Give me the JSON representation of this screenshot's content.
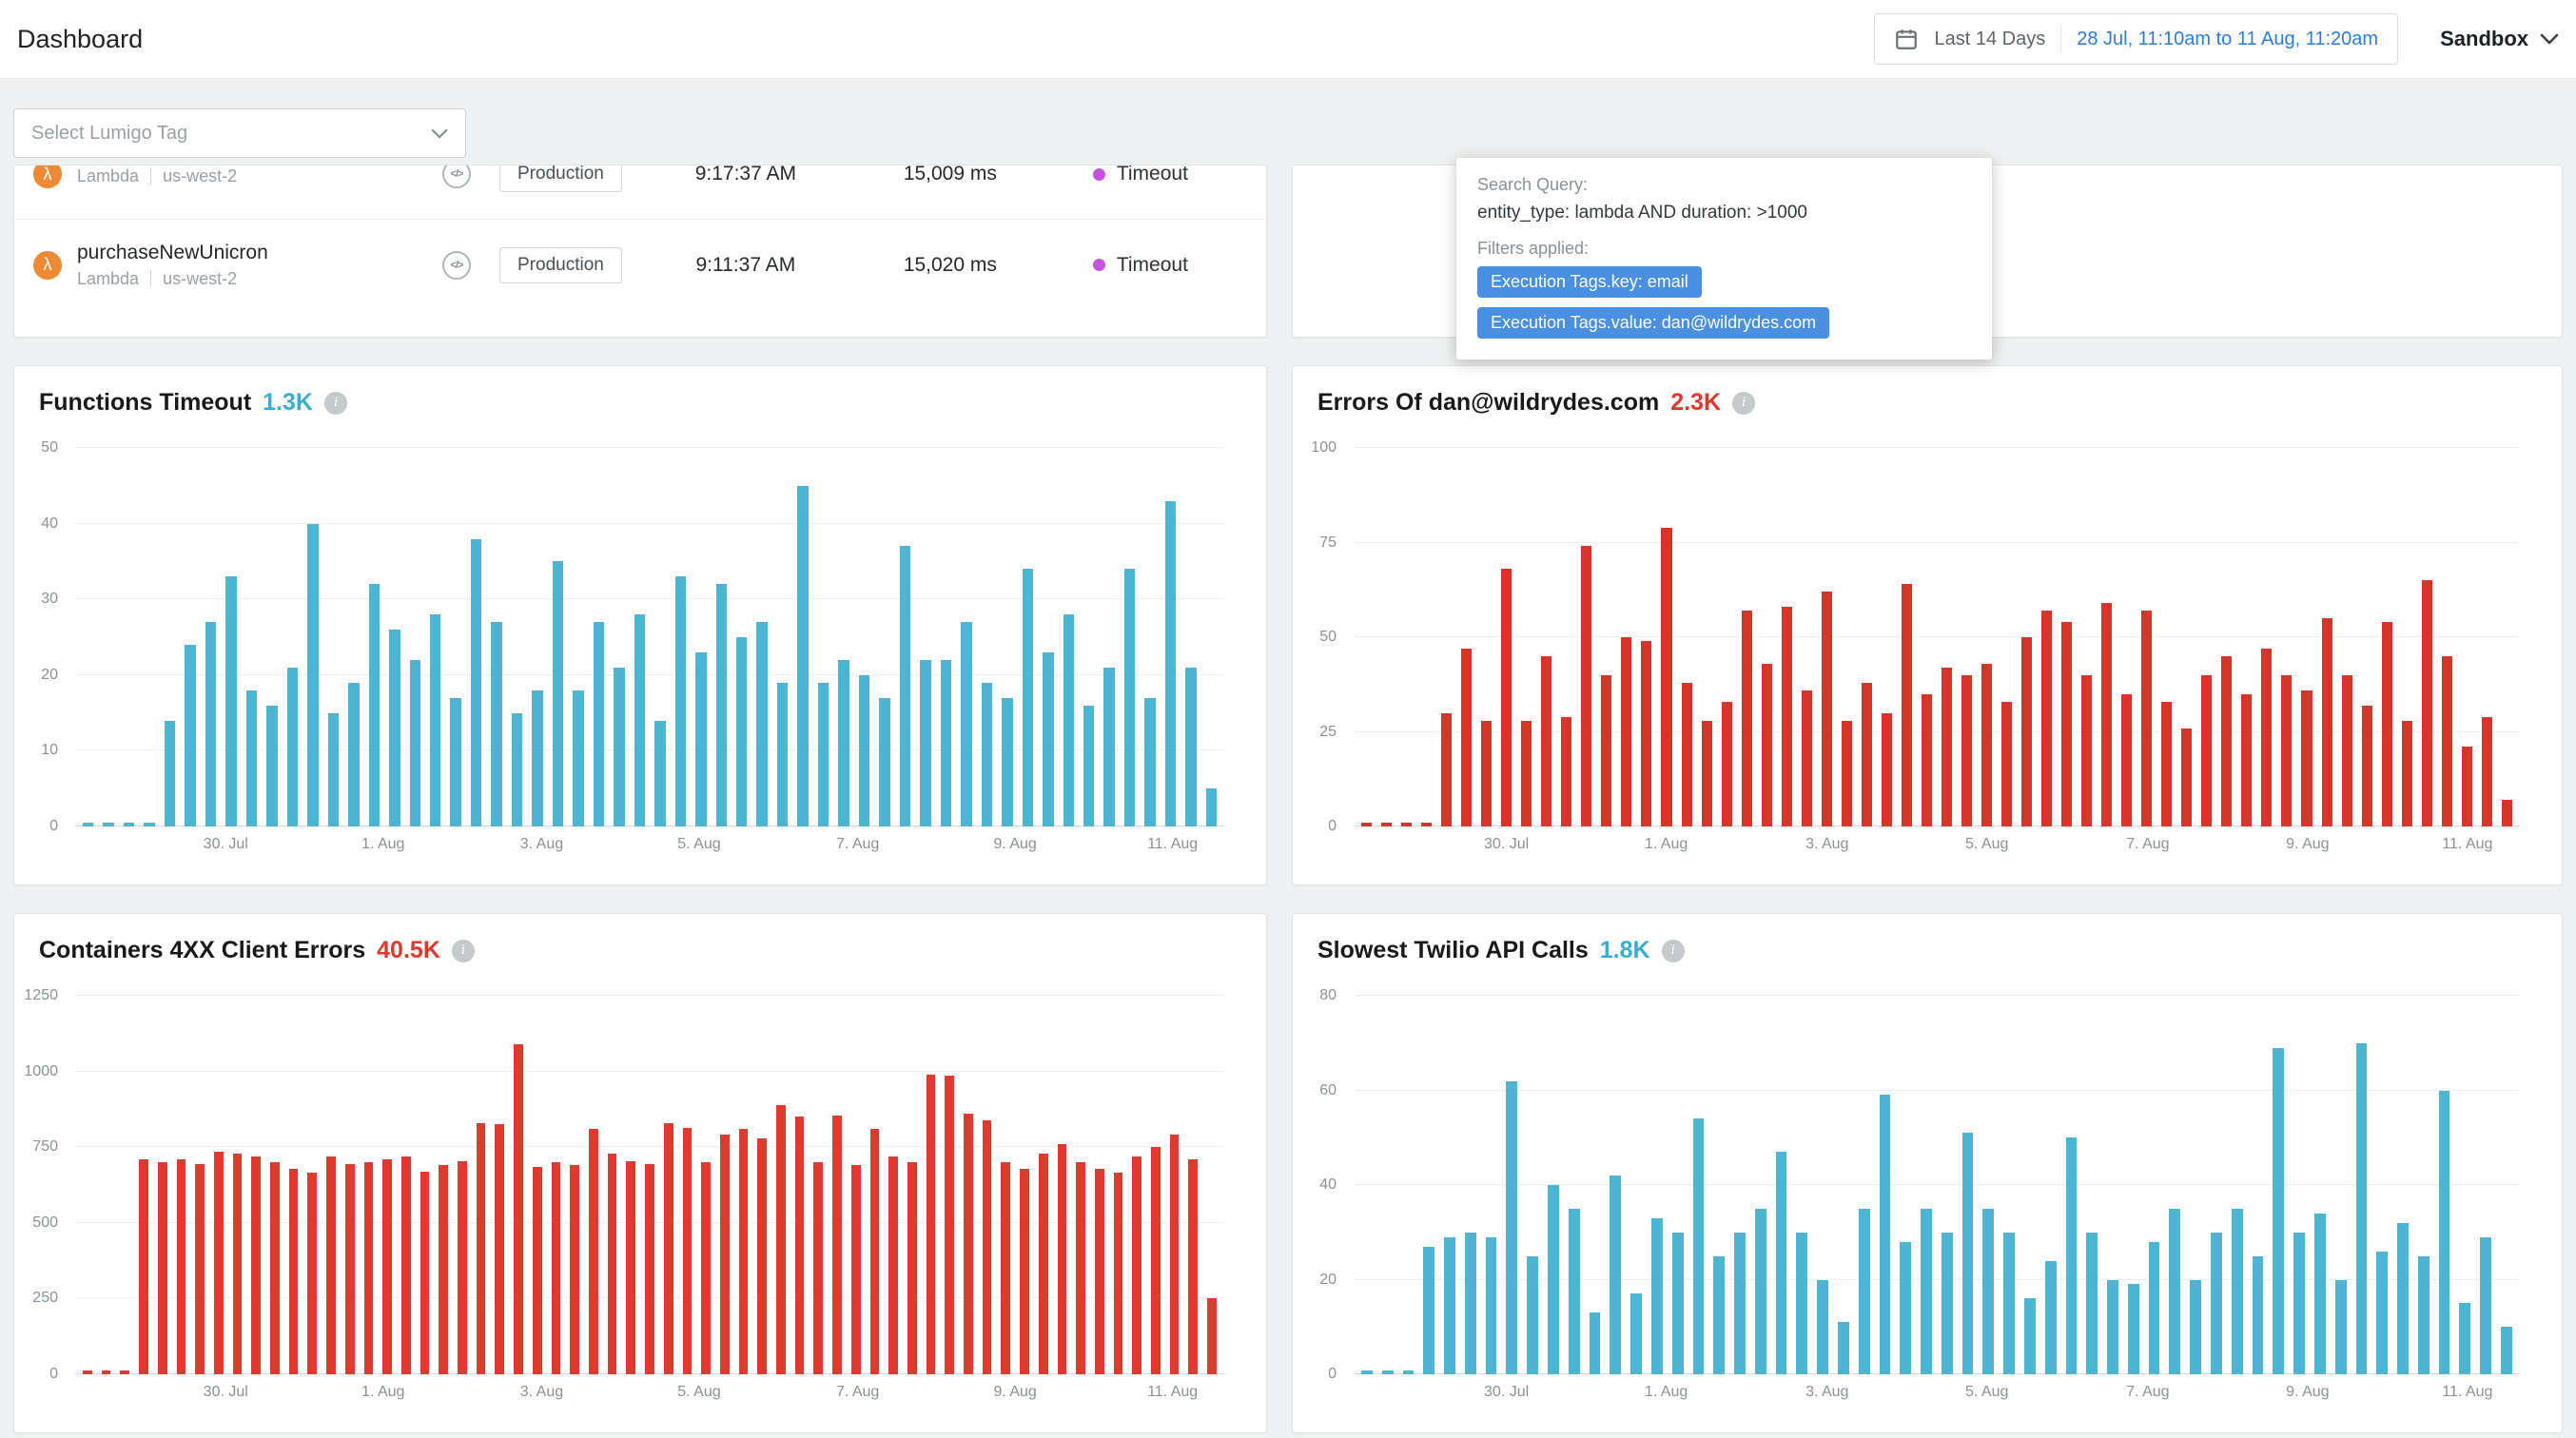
{
  "colors": {
    "accent_link": "#2a7de1",
    "chip_blue": "#4a90e2",
    "timeout_dot": "#c653e0"
  },
  "icons": {
    "info": "i",
    "code": "</>",
    "lambda": "λ"
  },
  "header": {
    "title": "Dashboard",
    "date_preset": "Last 14 Days",
    "date_range": "28 Jul, 11:10am to 11 Aug, 11:20am",
    "environment": "Sandbox"
  },
  "filters": {
    "tag_placeholder": "Select Lumigo Tag"
  },
  "services_table": {
    "rows": [
      {
        "name": "",
        "type": "Lambda",
        "region": "us-west-2",
        "env": "Production",
        "invoked_at": "9:17:37 AM",
        "duration": "15,009 ms",
        "status": "Timeout"
      },
      {
        "name": "purchaseNewUnicron",
        "type": "Lambda",
        "region": "us-west-2",
        "env": "Production",
        "invoked_at": "9:11:37 AM",
        "duration": "15,020 ms",
        "status": "Timeout"
      }
    ]
  },
  "tooltip": {
    "query_label": "Search Query:",
    "query": "entity_type: lambda AND duration: >1000",
    "filters_label": "Filters applied:",
    "chips": [
      "Execution Tags.key: email",
      "Execution Tags.value: dan@wildrydes.com"
    ]
  },
  "chart_data": [
    {
      "type": "bar",
      "title": "Functions Timeout",
      "total_label": "1.3K",
      "accent_color": "#3badd3",
      "bar_color": "#4cb5d4",
      "ylim": [
        0,
        50
      ],
      "yticks": [
        0,
        10,
        20,
        30,
        40,
        50
      ],
      "xticklabels": [
        "30. Jul",
        "1. Aug",
        "3. Aug",
        "5. Aug",
        "7. Aug",
        "9. Aug",
        "11. Aug"
      ],
      "xtick_positions": [
        13.1,
        26.8,
        40.6,
        54.3,
        68.1,
        81.8,
        95.5
      ],
      "values": [
        0,
        0,
        0,
        0,
        14,
        24,
        27,
        33,
        18,
        16,
        21,
        40,
        15,
        19,
        32,
        26,
        22,
        28,
        17,
        38,
        27,
        15,
        18,
        35,
        18,
        27,
        21,
        28,
        14,
        33,
        23,
        32,
        25,
        27,
        19,
        45,
        19,
        22,
        20,
        17,
        37,
        22,
        22,
        27,
        19,
        17,
        34,
        23,
        28,
        16,
        21,
        34,
        17,
        43,
        21,
        5
      ]
    },
    {
      "type": "bar",
      "title": "Errors Of dan@wildrydes.com",
      "total_label": "2.3K",
      "accent_color": "#e2382c",
      "bar_color": "#d6352a",
      "ylim": [
        0,
        100
      ],
      "yticks": [
        0,
        25,
        50,
        75,
        100
      ],
      "xticklabels": [
        "30. Jul",
        "1. Aug",
        "3. Aug",
        "5. Aug",
        "7. Aug",
        "9. Aug",
        "11. Aug"
      ],
      "xtick_positions": [
        13.1,
        26.8,
        40.6,
        54.3,
        68.1,
        81.8,
        95.5
      ],
      "values": [
        0,
        0,
        0,
        0,
        30,
        47,
        28,
        68,
        28,
        45,
        29,
        74,
        40,
        50,
        49,
        79,
        38,
        28,
        33,
        57,
        43,
        58,
        36,
        62,
        28,
        38,
        30,
        64,
        35,
        42,
        40,
        43,
        33,
        50,
        57,
        54,
        40,
        59,
        35,
        57,
        33,
        26,
        40,
        45,
        35,
        47,
        40,
        36,
        55,
        40,
        32,
        54,
        28,
        65,
        45,
        21,
        29,
        7
      ]
    },
    {
      "type": "bar",
      "title": "Containers 4XX Client Errors",
      "total_label": "40.5K",
      "accent_color": "#e2382c",
      "bar_color": "#e0392d",
      "ylim": [
        0,
        1250
      ],
      "yticks": [
        0,
        250,
        500,
        750,
        1000,
        1250
      ],
      "xticklabels": [
        "30. Jul",
        "1. Aug",
        "3. Aug",
        "5. Aug",
        "7. Aug",
        "9. Aug",
        "11. Aug"
      ],
      "xtick_positions": [
        13.1,
        26.8,
        40.6,
        54.3,
        68.1,
        81.8,
        95.5
      ],
      "values": [
        0,
        0,
        0,
        710,
        700,
        710,
        695,
        735,
        730,
        720,
        700,
        680,
        665,
        720,
        695,
        700,
        710,
        720,
        670,
        690,
        705,
        830,
        825,
        1090,
        685,
        700,
        690,
        810,
        730,
        705,
        695,
        830,
        815,
        700,
        790,
        810,
        780,
        890,
        850,
        700,
        855,
        690,
        810,
        720,
        700,
        990,
        985,
        860,
        840,
        700,
        680,
        730,
        760,
        700,
        680,
        665,
        720,
        750,
        790,
        710,
        250
      ]
    },
    {
      "type": "bar",
      "title": "Slowest Twilio API Calls",
      "total_label": "1.8K",
      "accent_color": "#3badd3",
      "bar_color": "#4cb5d4",
      "ylim": [
        0,
        80
      ],
      "yticks": [
        0,
        20,
        40,
        60,
        80
      ],
      "xticklabels": [
        "30. Jul",
        "1. Aug",
        "3. Aug",
        "5. Aug",
        "7. Aug",
        "9. Aug",
        "11. Aug"
      ],
      "xtick_positions": [
        13.1,
        26.8,
        40.6,
        54.3,
        68.1,
        81.8,
        95.5
      ],
      "values": [
        0,
        0,
        0,
        27,
        29,
        30,
        29,
        62,
        25,
        40,
        35,
        13,
        42,
        17,
        33,
        30,
        54,
        25,
        30,
        35,
        47,
        30,
        20,
        11,
        35,
        59,
        28,
        35,
        30,
        51,
        35,
        30,
        16,
        24,
        50,
        30,
        20,
        19,
        28,
        35,
        20,
        30,
        35,
        25,
        69,
        30,
        34,
        20,
        70,
        26,
        32,
        25,
        60,
        15,
        29,
        10
      ]
    }
  ]
}
